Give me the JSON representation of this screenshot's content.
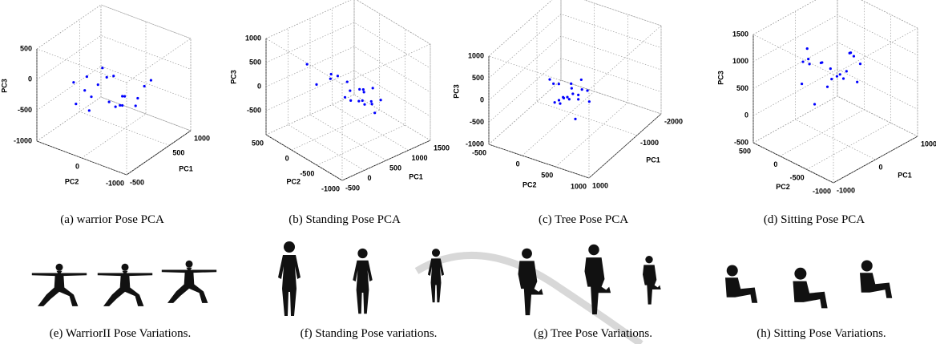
{
  "chart_data": [
    {
      "type": "scatter3d",
      "caption": "(a)  warrior Pose PCA",
      "xlabel": "PC1",
      "ylabel": "PC2",
      "zlabel": "PC3",
      "color": "#0000ff",
      "xlim": [
        -500,
        1000
      ],
      "xticks": [
        -500,
        500,
        1000
      ],
      "ylim": [
        -1000,
        1000
      ],
      "yticks": [
        -1000,
        0
      ],
      "zlim": [
        -1000,
        500
      ],
      "zticks": [
        -1000,
        -500,
        0,
        500
      ],
      "x": [
        200,
        300,
        100,
        400,
        500,
        250,
        350,
        450,
        150,
        600,
        700,
        300,
        200,
        400,
        500,
        650,
        350,
        250,
        550,
        450
      ],
      "y": [
        600,
        400,
        700,
        300,
        200,
        500,
        100,
        0,
        800,
        -200,
        -400,
        300,
        500,
        -100,
        100,
        -300,
        200,
        600,
        -200,
        0
      ],
      "z": [
        -400,
        -300,
        -600,
        -200,
        -700,
        -500,
        -100,
        -600,
        -300,
        -500,
        -200,
        0,
        -700,
        -400,
        -650,
        -300,
        -550,
        -200,
        -600,
        -450
      ]
    },
    {
      "type": "scatter3d",
      "caption": "(b)  Standing Pose PCA",
      "xlabel": "PC1",
      "ylabel": "PC2",
      "zlabel": "PC3",
      "color": "#0000ff",
      "xlim": [
        -500,
        1500
      ],
      "xticks": [
        -500,
        0,
        500,
        1000,
        1500
      ],
      "ylim": [
        -1000,
        500
      ],
      "yticks": [
        -1000,
        -500,
        0,
        500
      ],
      "zlim": [
        -1000,
        1000
      ],
      "zticks": [
        -500,
        0,
        500,
        1000
      ],
      "x": [
        500,
        600,
        700,
        800,
        650,
        750,
        550,
        900,
        850,
        700,
        400,
        300,
        200,
        600,
        800,
        950,
        1000,
        700,
        500,
        650
      ],
      "y": [
        -300,
        -200,
        -400,
        -300,
        -100,
        -500,
        0,
        -200,
        -400,
        -300,
        0,
        200,
        300,
        -100,
        -200,
        -500,
        -300,
        -600,
        100,
        -400
      ],
      "z": [
        -200,
        -100,
        -300,
        -150,
        0,
        -250,
        100,
        -200,
        -300,
        -50,
        200,
        -100,
        300,
        -300,
        -400,
        -250,
        -150,
        -350,
        0,
        -200
      ]
    },
    {
      "type": "scatter3d",
      "caption": "(c)  Tree Pose PCA",
      "xlabel": "PC1",
      "ylabel": "PC2",
      "zlabel": "PC3",
      "color": "#0000ff",
      "xlim": [
        1000,
        -2000
      ],
      "xticks": [
        1000,
        -1000,
        -2000
      ],
      "ylim": [
        1000,
        -500
      ],
      "yticks": [
        1000,
        500,
        0,
        -500
      ],
      "zlim": [
        -1000,
        1000
      ],
      "zticks": [
        -1000,
        -500,
        0,
        500,
        1000
      ],
      "x": [
        -500,
        -400,
        -600,
        -300,
        -700,
        -500,
        -200,
        -800,
        -400,
        -600,
        -300,
        -500,
        -900,
        -100,
        -700,
        -450,
        -550,
        -350,
        -650,
        -250
      ],
      "y": [
        300,
        200,
        400,
        100,
        0,
        200,
        300,
        -100,
        500,
        100,
        0,
        300,
        200,
        400,
        -200,
        100,
        200,
        0,
        300,
        100
      ],
      "z": [
        -200,
        -300,
        -100,
        -400,
        -500,
        -100,
        200,
        -300,
        -200,
        -400,
        0,
        -300,
        -100,
        -500,
        -200,
        -350,
        -250,
        -450,
        -150,
        -300
      ]
    },
    {
      "type": "scatter3d",
      "caption": "(d)  Sitting Pose PCA",
      "xlabel": "PC1",
      "ylabel": "PC2",
      "zlabel": "PC3",
      "color": "#0000ff",
      "xlim": [
        -1000,
        1000
      ],
      "xticks": [
        -1000,
        0,
        1000
      ],
      "ylim": [
        -1000,
        500
      ],
      "yticks": [
        -1000,
        -500,
        0,
        500
      ],
      "zlim": [
        -500,
        1500
      ],
      "zticks": [
        -500,
        0,
        500,
        1000,
        1500
      ],
      "x": [
        0,
        100,
        -200,
        200,
        300,
        -100,
        400,
        0,
        100,
        -300,
        200,
        500,
        -100,
        300,
        0,
        100,
        -200,
        400,
        200,
        -50
      ],
      "y": [
        0,
        -200,
        100,
        -300,
        -100,
        200,
        -400,
        -100,
        100,
        0,
        -500,
        -200,
        300,
        -300,
        -400,
        -100,
        200,
        -200,
        0,
        100
      ],
      "z": [
        800,
        600,
        900,
        700,
        500,
        1000,
        800,
        400,
        700,
        900,
        600,
        800,
        300,
        1000,
        700,
        500,
        800,
        900,
        600,
        0
      ]
    }
  ],
  "variations": [
    {
      "caption": "(e)  WarriorII Pose Variations."
    },
    {
      "caption": "(f)  Standing Pose variations."
    },
    {
      "caption": "(g)  Tree Pose Variations."
    },
    {
      "caption": "(h)  Sitting Pose Variations."
    }
  ]
}
